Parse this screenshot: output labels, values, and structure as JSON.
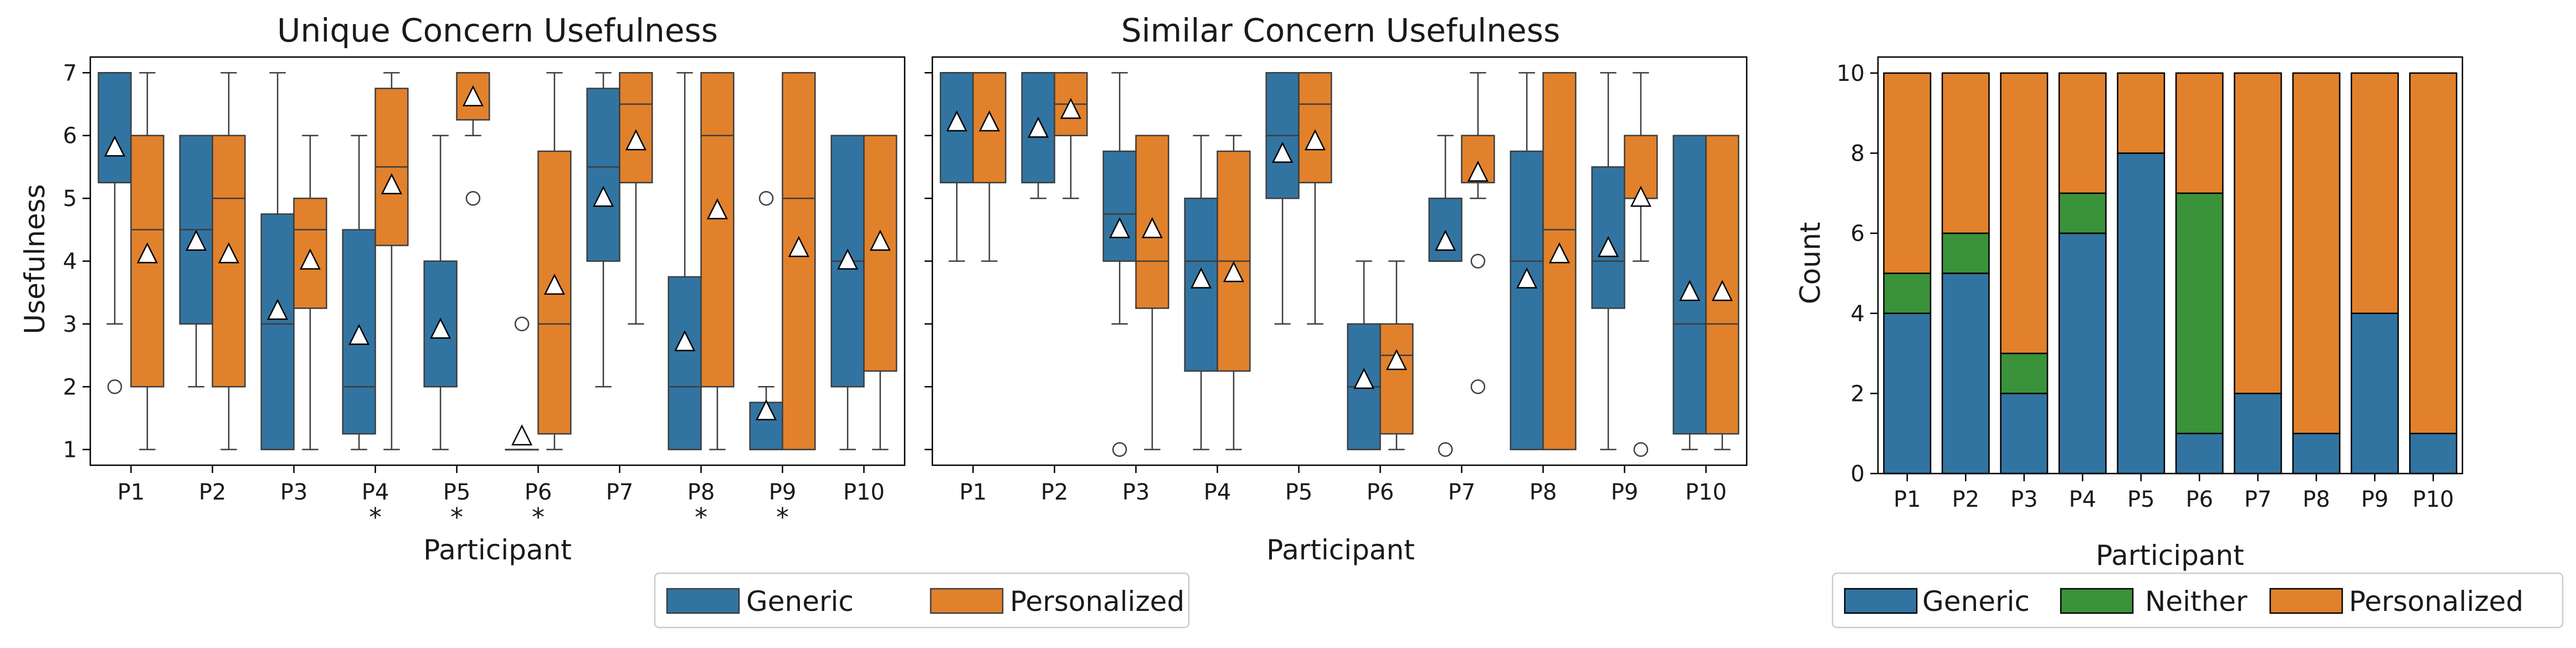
{
  "colors": {
    "generic": "#3274a1",
    "personalized": "#e1812c",
    "neither": "#3a923a"
  },
  "chart_data": [
    {
      "type": "box",
      "title": "Unique Concern Usefulness",
      "xlabel": "Participant",
      "ylabel": "Usefulness",
      "ylim": [
        0.75,
        7.25
      ],
      "yticks": [
        1,
        2,
        3,
        4,
        5,
        6,
        7
      ],
      "categories": [
        "P1",
        "P2",
        "P3",
        "P4",
        "P5",
        "P6",
        "P7",
        "P8",
        "P9",
        "P10"
      ],
      "significance": [
        "",
        "",
        "",
        "*",
        "*",
        "*",
        "",
        "*",
        "*",
        ""
      ],
      "series": [
        {
          "name": "Generic",
          "boxes": [
            {
              "whislo": 3,
              "q1": 5.25,
              "med": 7,
              "q3": 7,
              "whishi": 7,
              "mean": 5.8,
              "fliers": [
                2
              ]
            },
            {
              "whislo": 2,
              "q1": 3,
              "med": 4.5,
              "q3": 6,
              "whishi": 6,
              "mean": 4.3,
              "fliers": []
            },
            {
              "whislo": 1,
              "q1": 1,
              "med": 3,
              "q3": 4.75,
              "whishi": 7,
              "mean": 3.2,
              "fliers": []
            },
            {
              "whislo": 1,
              "q1": 1.25,
              "med": 2,
              "q3": 4.5,
              "whishi": 6,
              "mean": 2.8,
              "fliers": []
            },
            {
              "whislo": 1,
              "q1": 2,
              "med": 2,
              "q3": 4,
              "whishi": 6,
              "mean": 2.9,
              "fliers": []
            },
            {
              "whislo": 1,
              "q1": 1,
              "med": 1,
              "q3": 1,
              "whishi": 1,
              "mean": 1.2,
              "fliers": [
                3
              ]
            },
            {
              "whislo": 2,
              "q1": 4,
              "med": 5.5,
              "q3": 6.75,
              "whishi": 7,
              "mean": 5.0,
              "fliers": []
            },
            {
              "whislo": 1,
              "q1": 1,
              "med": 2,
              "q3": 3.75,
              "whishi": 7,
              "mean": 2.7,
              "fliers": []
            },
            {
              "whislo": 1,
              "q1": 1,
              "med": 1,
              "q3": 1.75,
              "whishi": 2,
              "mean": 1.6,
              "fliers": [
                5
              ]
            },
            {
              "whislo": 1,
              "q1": 2,
              "med": 4,
              "q3": 6,
              "whishi": 6,
              "mean": 4.0,
              "fliers": []
            }
          ]
        },
        {
          "name": "Personalized",
          "boxes": [
            {
              "whislo": 1,
              "q1": 2,
              "med": 4.5,
              "q3": 6,
              "whishi": 7,
              "mean": 4.1,
              "fliers": []
            },
            {
              "whislo": 1,
              "q1": 2,
              "med": 5,
              "q3": 6,
              "whishi": 7,
              "mean": 4.1,
              "fliers": []
            },
            {
              "whislo": 1,
              "q1": 3.25,
              "med": 4.5,
              "q3": 5,
              "whishi": 6,
              "mean": 4.0,
              "fliers": []
            },
            {
              "whislo": 1,
              "q1": 4.25,
              "med": 5.5,
              "q3": 6.75,
              "whishi": 7,
              "mean": 5.2,
              "fliers": []
            },
            {
              "whislo": 6,
              "q1": 6.25,
              "med": 7,
              "q3": 7,
              "whishi": 7,
              "mean": 6.6,
              "fliers": [
                5
              ]
            },
            {
              "whislo": 1,
              "q1": 1.25,
              "med": 3,
              "q3": 5.75,
              "whishi": 7,
              "mean": 3.6,
              "fliers": []
            },
            {
              "whislo": 3,
              "q1": 5.25,
              "med": 6.5,
              "q3": 7,
              "whishi": 7,
              "mean": 5.9,
              "fliers": []
            },
            {
              "whislo": 1,
              "q1": 2,
              "med": 6,
              "q3": 7,
              "whishi": 7,
              "mean": 4.8,
              "fliers": []
            },
            {
              "whislo": 1,
              "q1": 1,
              "med": 5,
              "q3": 7,
              "whishi": 7,
              "mean": 4.2,
              "fliers": []
            },
            {
              "whislo": 1,
              "q1": 2.25,
              "med": 6,
              "q3": 6,
              "whishi": 6,
              "mean": 4.3,
              "fliers": []
            }
          ]
        }
      ]
    },
    {
      "type": "box",
      "title": "Similar Concern Usefulness",
      "xlabel": "Participant",
      "ylabel": "",
      "ylim": [
        0.75,
        7.25
      ],
      "yticks": [
        1,
        2,
        3,
        4,
        5,
        6,
        7
      ],
      "categories": [
        "P1",
        "P2",
        "P3",
        "P4",
        "P5",
        "P6",
        "P7",
        "P8",
        "P9",
        "P10"
      ],
      "significance": [
        "",
        "",
        "",
        "",
        "",
        "",
        "",
        "",
        "",
        ""
      ],
      "series": [
        {
          "name": "Generic",
          "boxes": [
            {
              "whislo": 4,
              "q1": 5.25,
              "med": 7,
              "q3": 7,
              "whishi": 7,
              "mean": 6.2,
              "fliers": []
            },
            {
              "whislo": 5,
              "q1": 5.25,
              "med": 7,
              "q3": 7,
              "whishi": 7,
              "mean": 6.1,
              "fliers": []
            },
            {
              "whislo": 3,
              "q1": 4,
              "med": 4.75,
              "q3": 5.75,
              "whishi": 7,
              "mean": 4.5,
              "fliers": [
                1
              ]
            },
            {
              "whislo": 1,
              "q1": 2.25,
              "med": 4,
              "q3": 5,
              "whishi": 6,
              "mean": 3.7,
              "fliers": []
            },
            {
              "whislo": 3,
              "q1": 5,
              "med": 6,
              "q3": 7,
              "whishi": 7,
              "mean": 5.7,
              "fliers": []
            },
            {
              "whislo": 1,
              "q1": 1,
              "med": 2,
              "q3": 3,
              "whishi": 4,
              "mean": 2.1,
              "fliers": []
            },
            {
              "whislo": 4,
              "q1": 4,
              "med": 4,
              "q3": 5,
              "whishi": 6,
              "mean": 4.3,
              "fliers": [
                1
              ]
            },
            {
              "whislo": 1,
              "q1": 1,
              "med": 4,
              "q3": 5.75,
              "whishi": 7,
              "mean": 3.7,
              "fliers": []
            },
            {
              "whislo": 1,
              "q1": 3.25,
              "med": 4,
              "q3": 5.5,
              "whishi": 7,
              "mean": 4.2,
              "fliers": []
            },
            {
              "whislo": 1,
              "q1": 1.25,
              "med": 3,
              "q3": 6,
              "whishi": 6,
              "mean": 3.5,
              "fliers": []
            }
          ]
        },
        {
          "name": "Personalized",
          "boxes": [
            {
              "whislo": 4,
              "q1": 5.25,
              "med": 7,
              "q3": 7,
              "whishi": 7,
              "mean": 6.2,
              "fliers": []
            },
            {
              "whislo": 5,
              "q1": 6,
              "med": 6.5,
              "q3": 7,
              "whishi": 7,
              "mean": 6.4,
              "fliers": []
            },
            {
              "whislo": 1,
              "q1": 3.25,
              "med": 4,
              "q3": 6,
              "whishi": 6,
              "mean": 4.5,
              "fliers": []
            },
            {
              "whislo": 1,
              "q1": 2.25,
              "med": 4,
              "q3": 5.75,
              "whishi": 6,
              "mean": 3.8,
              "fliers": []
            },
            {
              "whislo": 3,
              "q1": 5.25,
              "med": 6.5,
              "q3": 7,
              "whishi": 7,
              "mean": 5.9,
              "fliers": []
            },
            {
              "whislo": 1,
              "q1": 1.25,
              "med": 2.5,
              "q3": 3,
              "whishi": 4,
              "mean": 2.4,
              "fliers": []
            },
            {
              "whislo": 5,
              "q1": 5.25,
              "med": 6,
              "q3": 6,
              "whishi": 7,
              "mean": 5.4,
              "fliers": [
                4,
                2
              ]
            },
            {
              "whislo": 1,
              "q1": 1,
              "med": 4.5,
              "q3": 7,
              "whishi": 7,
              "mean": 4.1,
              "fliers": []
            },
            {
              "whislo": 4,
              "q1": 5,
              "med": 5,
              "q3": 6,
              "whishi": 7,
              "mean": 5.0,
              "fliers": [
                1
              ]
            },
            {
              "whislo": 1,
              "q1": 1.25,
              "med": 3,
              "q3": 6,
              "whishi": 6,
              "mean": 3.5,
              "fliers": []
            }
          ]
        }
      ]
    },
    {
      "type": "bar",
      "stacked": true,
      "title": "",
      "xlabel": "Participant",
      "ylabel": "Count",
      "ylim": [
        0,
        10.4
      ],
      "yticks": [
        0,
        2,
        4,
        6,
        8,
        10
      ],
      "categories": [
        "P1",
        "P2",
        "P3",
        "P4",
        "P5",
        "P6",
        "P7",
        "P8",
        "P9",
        "P10"
      ],
      "series": [
        {
          "name": "Generic",
          "values": [
            4,
            5,
            2,
            6,
            8,
            1,
            2,
            1,
            4,
            1
          ]
        },
        {
          "name": "Neither",
          "values": [
            1,
            1,
            1,
            1,
            0,
            6,
            0,
            0,
            0,
            0
          ]
        },
        {
          "name": "Personalized",
          "values": [
            5,
            4,
            7,
            3,
            2,
            3,
            8,
            9,
            6,
            9
          ]
        }
      ]
    }
  ],
  "legend_left": [
    "Generic",
    "Personalized"
  ],
  "legend_right": [
    "Generic",
    "Neither",
    "Personalized"
  ]
}
